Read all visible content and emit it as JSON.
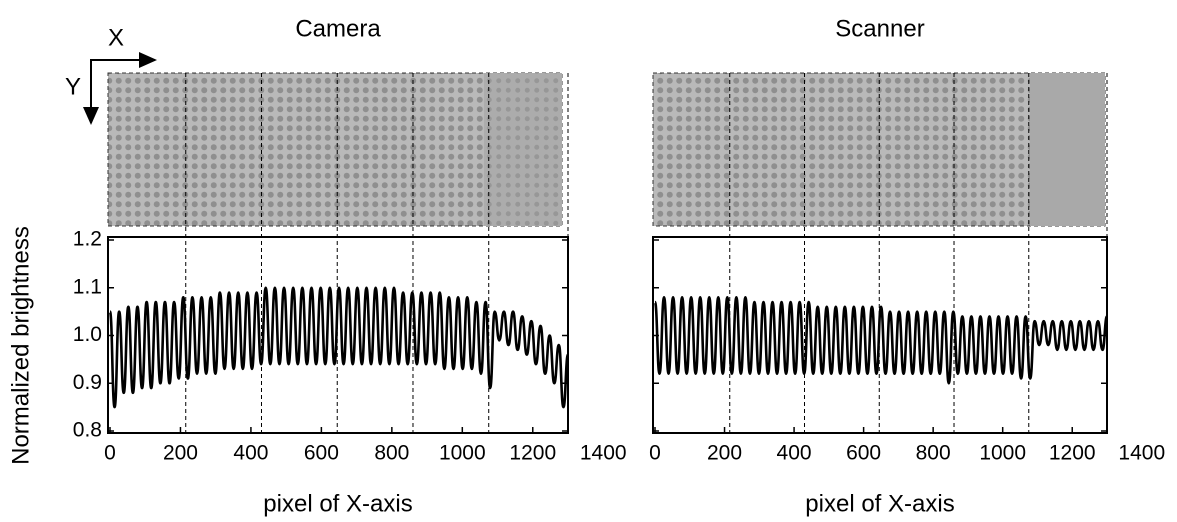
{
  "chart_data": [
    {
      "type": "line",
      "title": "Camera",
      "xlabel": "pixel of X-axis",
      "ylabel": "Normalized brightness",
      "x": [
        0,
        13,
        26,
        39,
        52,
        65,
        78,
        91,
        104,
        117,
        130,
        143,
        156,
        169,
        182,
        195,
        208,
        221,
        234,
        247,
        260,
        273,
        286,
        299,
        312,
        325,
        338,
        351,
        364,
        377,
        390,
        403,
        416,
        429,
        442,
        455,
        468,
        481,
        494,
        507,
        520,
        533,
        546,
        559,
        572,
        585,
        598,
        611,
        624,
        637,
        650,
        663,
        676,
        689,
        702,
        715,
        728,
        741,
        754,
        767,
        780,
        793,
        806,
        819,
        832,
        845,
        858,
        871,
        884,
        897,
        910,
        923,
        936,
        949,
        962,
        975,
        988,
        1001,
        1014,
        1027,
        1040,
        1053,
        1066,
        1079,
        1092,
        1105,
        1118,
        1131,
        1144,
        1157,
        1170,
        1183,
        1196,
        1209,
        1222,
        1235,
        1248,
        1261,
        1274,
        1287,
        1300
      ],
      "values": [
        1.05,
        0.85,
        1.05,
        0.88,
        1.06,
        0.88,
        1.06,
        0.89,
        1.07,
        0.89,
        1.07,
        0.9,
        1.07,
        0.9,
        1.07,
        0.91,
        1.08,
        0.91,
        1.08,
        0.92,
        1.08,
        0.92,
        1.08,
        0.92,
        1.09,
        0.93,
        1.09,
        0.93,
        1.09,
        0.93,
        1.09,
        0.93,
        1.09,
        0.94,
        1.1,
        0.94,
        1.1,
        0.94,
        1.1,
        0.94,
        1.1,
        0.94,
        1.1,
        0.94,
        1.1,
        0.94,
        1.1,
        0.94,
        1.1,
        0.94,
        1.1,
        0.94,
        1.1,
        0.94,
        1.1,
        0.94,
        1.1,
        0.94,
        1.1,
        0.94,
        1.1,
        0.94,
        1.1,
        0.94,
        1.09,
        0.94,
        1.09,
        0.94,
        1.09,
        0.94,
        1.09,
        0.94,
        1.09,
        0.93,
        1.08,
        0.93,
        1.08,
        0.93,
        1.08,
        0.93,
        1.07,
        0.92,
        1.07,
        0.89,
        1.05,
        0.99,
        1.05,
        0.98,
        1.05,
        0.97,
        1.04,
        0.96,
        1.03,
        0.94,
        1.02,
        0.92,
        1.0,
        0.9,
        0.98,
        0.85,
        0.96
      ],
      "color": "#000000",
      "dividers": [
        215,
        430,
        645,
        860,
        1075,
        1300
      ],
      "xlim": [
        0,
        1300
      ],
      "xticks": [
        0,
        200,
        400,
        600,
        800,
        1000,
        1200,
        1400
      ],
      "ylim": [
        0.8,
        1.2
      ],
      "yticks": [
        0.8,
        0.9,
        {
          "value": 1,
          "label": "1.0"
        },
        1.1,
        1.2
      ],
      "ytick_labels": true
    },
    {
      "type": "line",
      "title": "Scanner",
      "xlabel": "pixel of X-axis",
      "x": [
        0,
        13,
        26,
        39,
        52,
        65,
        78,
        91,
        104,
        117,
        130,
        143,
        156,
        169,
        182,
        195,
        208,
        221,
        234,
        247,
        260,
        273,
        286,
        299,
        312,
        325,
        338,
        351,
        364,
        377,
        390,
        403,
        416,
        429,
        442,
        455,
        468,
        481,
        494,
        507,
        520,
        533,
        546,
        559,
        572,
        585,
        598,
        611,
        624,
        637,
        650,
        663,
        676,
        689,
        702,
        715,
        728,
        741,
        754,
        767,
        780,
        793,
        806,
        819,
        832,
        845,
        858,
        871,
        884,
        897,
        910,
        923,
        936,
        949,
        962,
        975,
        988,
        1001,
        1014,
        1027,
        1040,
        1053,
        1066,
        1079,
        1092,
        1105,
        1118,
        1131,
        1144,
        1157,
        1170,
        1183,
        1196,
        1209,
        1222,
        1235,
        1248,
        1261,
        1274,
        1287,
        1300
      ],
      "values": [
        1.07,
        0.92,
        1.08,
        0.92,
        1.08,
        0.92,
        1.08,
        0.92,
        1.08,
        0.92,
        1.08,
        0.92,
        1.08,
        0.92,
        1.08,
        0.92,
        1.08,
        0.92,
        1.08,
        0.92,
        1.08,
        0.92,
        1.07,
        0.92,
        1.07,
        0.92,
        1.07,
        0.92,
        1.07,
        0.92,
        1.07,
        0.92,
        1.07,
        0.92,
        1.07,
        0.92,
        1.06,
        0.92,
        1.06,
        0.92,
        1.06,
        0.92,
        1.06,
        0.92,
        1.06,
        0.92,
        1.06,
        0.92,
        1.06,
        0.92,
        1.06,
        0.92,
        1.05,
        0.92,
        1.05,
        0.92,
        1.05,
        0.92,
        1.05,
        0.92,
        1.05,
        0.92,
        1.05,
        0.92,
        1.05,
        0.9,
        1.05,
        0.92,
        1.04,
        0.92,
        1.04,
        0.92,
        1.04,
        0.92,
        1.04,
        0.92,
        1.04,
        0.92,
        1.04,
        0.92,
        1.04,
        0.91,
        1.04,
        0.91,
        1.03,
        0.98,
        1.03,
        0.98,
        1.03,
        0.97,
        1.03,
        0.97,
        1.03,
        0.97,
        1.03,
        0.97,
        1.03,
        0.97,
        1.03,
        0.97,
        1.04
      ],
      "color": "#000000",
      "dividers": [
        215,
        430,
        645,
        860,
        1075,
        1300
      ],
      "xlim": [
        0,
        1300
      ],
      "xticks": [
        0,
        200,
        400,
        600,
        800,
        1000,
        1200,
        1400
      ],
      "ylim": [
        0.8,
        1.2
      ],
      "yticks": [
        0.8,
        0.9,
        {
          "value": 1,
          "label": "1.0"
        },
        1.1,
        1.2
      ],
      "ytick_labels": false
    }
  ],
  "axis_arrows": {
    "x": "X",
    "y": "Y"
  }
}
